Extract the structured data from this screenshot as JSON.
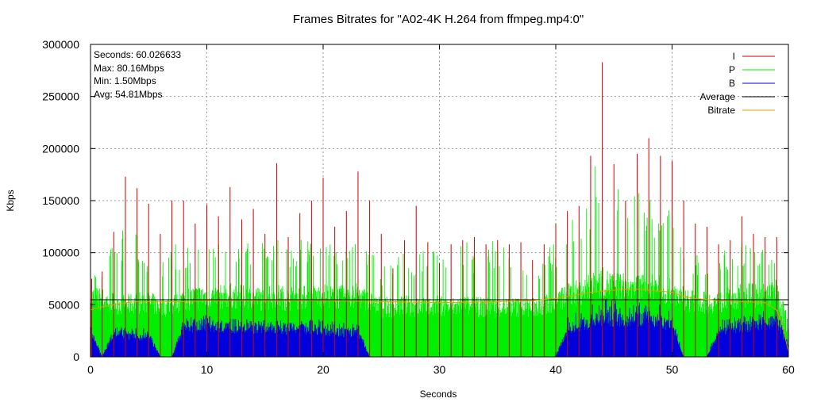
{
  "chart_data": {
    "type": "bar",
    "title": "Frames Bitrates for \"A02-4K H.264 from ffmpeg.mp4:0\"",
    "xlabel": "Seconds",
    "ylabel": "Kbps",
    "xlim": [
      0,
      60
    ],
    "ylim": [
      0,
      300000
    ],
    "x_ticks": [
      0,
      10,
      20,
      30,
      40,
      50,
      60
    ],
    "y_ticks": [
      0,
      50000,
      100000,
      150000,
      200000,
      250000,
      300000
    ],
    "grid": true,
    "legend_position": "top-right",
    "stats": [
      "Seconds: 60.026633",
      "Max: 80.16Mbps",
      "Min: 1.50Mbps",
      "Avg: 54.81Mbps"
    ],
    "colors": {
      "I": "#cc0000",
      "P": "#00ee00",
      "B": "#0000dd",
      "Average": "#000000",
      "Bitrate": "#e0a000",
      "grid": "#9a9a9a"
    },
    "series": [
      {
        "name": "I",
        "kind": "spikes",
        "x": [
          0.1,
          1.0,
          2.0,
          3.0,
          4.0,
          5.0,
          6.0,
          7.0,
          8.0,
          9.0,
          10.0,
          11.0,
          12.0,
          13.0,
          14.0,
          15.0,
          16.0,
          17.0,
          18.0,
          19.0,
          20.0,
          21.0,
          22.0,
          23.0,
          24.0,
          25.0,
          26.0,
          27.0,
          28.0,
          29.0,
          30.0,
          31.0,
          32.0,
          33.0,
          34.0,
          35.0,
          36.0,
          37.0,
          38.0,
          39.0,
          40.0,
          41.0,
          42.0,
          43.0,
          44.0,
          45.0,
          46.0,
          47.0,
          48.0,
          49.0,
          50.0,
          51.0,
          52.0,
          53.0,
          54.0,
          55.0,
          56.0,
          57.0,
          58.0,
          59.0
        ],
        "values": [
          75000,
          82000,
          120000,
          173000,
          162000,
          147000,
          118000,
          150000,
          150000,
          128000,
          146000,
          135000,
          163000,
          132000,
          142000,
          118000,
          186000,
          115000,
          138000,
          150000,
          172000,
          125000,
          140000,
          178000,
          150000,
          118000,
          85000,
          112000,
          145000,
          110000,
          90000,
          108000,
          112000,
          115000,
          108000,
          112000,
          108000,
          110000,
          93000,
          108000,
          128000,
          140000,
          145000,
          193000,
          283000,
          185000,
          150000,
          195000,
          210000,
          193000,
          188000,
          150000,
          128000,
          125000,
          108000,
          112000,
          135000,
          118000,
          115000,
          115000
        ]
      },
      {
        "name": "P",
        "kind": "envelope",
        "x": [
          0,
          1,
          2,
          3,
          4,
          5,
          6,
          7,
          8,
          9,
          10,
          11,
          12,
          13,
          14,
          15,
          16,
          17,
          18,
          19,
          20,
          21,
          22,
          23,
          24,
          25,
          26,
          27,
          28,
          29,
          30,
          31,
          32,
          33,
          34,
          35,
          36,
          37,
          38,
          39,
          40,
          41,
          42,
          43,
          44,
          45,
          46,
          47,
          48,
          49,
          50,
          51,
          52,
          53,
          54,
          55,
          56,
          57,
          58,
          59,
          60
        ],
        "baseline": [
          60000,
          58000,
          55000,
          52000,
          55000,
          55000,
          50000,
          52000,
          58000,
          60000,
          62000,
          60000,
          62000,
          60000,
          60000,
          58000,
          62000,
          58000,
          60000,
          60000,
          62000,
          60000,
          60000,
          62000,
          55000,
          50000,
          50000,
          52000,
          50000,
          50000,
          52000,
          50000,
          52000,
          50000,
          50000,
          50000,
          50000,
          50000,
          50000,
          52000,
          55000,
          62000,
          65000,
          70000,
          75000,
          72000,
          70000,
          70000,
          72000,
          68000,
          65000,
          60000,
          55000,
          55000,
          55000,
          58000,
          62000,
          62000,
          62000,
          65000,
          20000
        ],
        "peaks": [
          80000,
          85000,
          110000,
          130000,
          125000,
          105000,
          95000,
          110000,
          108000,
          115000,
          112000,
          115000,
          110000,
          115000,
          112000,
          110000,
          115000,
          108000,
          115000,
          112000,
          110000,
          108000,
          115000,
          130000,
          108000,
          85000,
          95000,
          100000,
          100000,
          108000,
          105000,
          110000,
          112000,
          108000,
          110000,
          115000,
          105000,
          108000,
          95000,
          100000,
          115000,
          130000,
          148000,
          172000,
          200000,
          165000,
          158000,
          158000,
          155000,
          152000,
          140000,
          110000,
          100000,
          100000,
          100000,
          105000,
          110000,
          110000,
          105000,
          100000,
          30000
        ]
      },
      {
        "name": "B",
        "kind": "envelope",
        "x": [
          0,
          1,
          2,
          3,
          4,
          5,
          6,
          7,
          8,
          9,
          10,
          11,
          12,
          13,
          14,
          15,
          16,
          17,
          18,
          19,
          20,
          21,
          22,
          23,
          24,
          25,
          26,
          27,
          28,
          29,
          30,
          31,
          32,
          33,
          34,
          35,
          36,
          37,
          38,
          39,
          40,
          41,
          42,
          43,
          44,
          45,
          46,
          47,
          48,
          49,
          50,
          51,
          52,
          53,
          54,
          55,
          56,
          57,
          58,
          59,
          60
        ],
        "baseline": [
          25000,
          0,
          25000,
          20000,
          20000,
          22000,
          0,
          0,
          30000,
          30000,
          32000,
          30000,
          30000,
          28000,
          28000,
          28000,
          30000,
          28000,
          28000,
          28000,
          28000,
          25000,
          25000,
          25000,
          0,
          0,
          0,
          0,
          0,
          0,
          0,
          0,
          0,
          0,
          0,
          0,
          0,
          0,
          0,
          0,
          0,
          28000,
          32000,
          35000,
          40000,
          38000,
          35000,
          38000,
          40000,
          35000,
          32000,
          0,
          0,
          0,
          25000,
          28000,
          30000,
          32000,
          35000,
          35000,
          10000
        ],
        "peaks": [
          35000,
          0,
          32000,
          28000,
          28000,
          28000,
          0,
          0,
          38000,
          38000,
          40000,
          38000,
          38000,
          36000,
          36000,
          36000,
          38000,
          36000,
          36000,
          36000,
          36000,
          34000,
          34000,
          32000,
          0,
          0,
          0,
          0,
          0,
          0,
          0,
          0,
          0,
          0,
          0,
          0,
          0,
          0,
          0,
          0,
          0,
          40000,
          45000,
          50000,
          58000,
          55000,
          50000,
          52000,
          55000,
          50000,
          45000,
          0,
          0,
          0,
          35000,
          38000,
          40000,
          42000,
          45000,
          45000,
          12000
        ]
      },
      {
        "name": "Average",
        "kind": "line",
        "x": [
          0,
          60
        ],
        "values": [
          54810,
          54810
        ]
      },
      {
        "name": "Bitrate",
        "kind": "line",
        "x": [
          0,
          1,
          2,
          3,
          4,
          5,
          6,
          8,
          10,
          15,
          20,
          25,
          30,
          35,
          38,
          40,
          41,
          42,
          43,
          44,
          45,
          46,
          47,
          48,
          49,
          50,
          51,
          52,
          53,
          54,
          56,
          58,
          59,
          59.5,
          60
        ],
        "values": [
          45000,
          48000,
          50000,
          52000,
          53000,
          53000,
          53000,
          53000,
          54000,
          54000,
          54000,
          53000,
          52000,
          53000,
          54000,
          56000,
          58000,
          60000,
          62000,
          63000,
          64000,
          65000,
          65000,
          64000,
          63000,
          62000,
          58000,
          56000,
          55000,
          54000,
          53000,
          52000,
          45000,
          30000,
          5000
        ]
      }
    ]
  }
}
